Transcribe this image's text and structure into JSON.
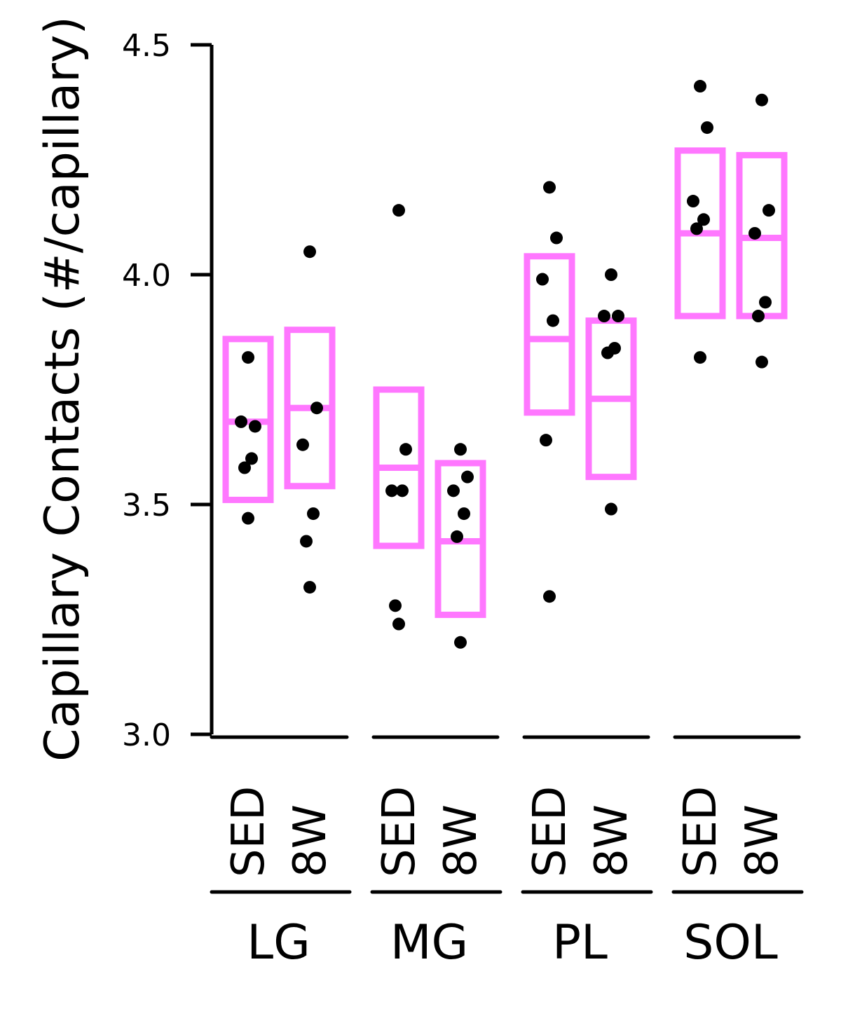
{
  "chart_data": {
    "type": "scatter",
    "ylabel": "Capillary Contacts (#/capillary)",
    "ylim": [
      3.0,
      4.5
    ],
    "yticks": [
      "3.0",
      "3.5",
      "4.0",
      "4.5"
    ],
    "ytick_values": [
      3.0,
      3.5,
      4.0,
      4.5
    ],
    "groups": [
      {
        "name": "LG",
        "conditions": [
          {
            "label": "SED",
            "points": [
              3.82,
              3.67,
              3.68,
              3.6,
              3.58,
              3.47
            ],
            "box": {
              "low": 3.51,
              "mid": 3.68,
              "high": 3.86
            }
          },
          {
            "label": "8W",
            "points": [
              4.05,
              3.71,
              3.63,
              3.48,
              3.42,
              3.32
            ],
            "box": {
              "low": 3.54,
              "mid": 3.71,
              "high": 3.88
            }
          }
        ]
      },
      {
        "name": "MG",
        "conditions": [
          {
            "label": "SED",
            "points": [
              4.14,
              3.62,
              3.53,
              3.53,
              3.28,
              3.24
            ],
            "box": {
              "low": 3.41,
              "mid": 3.58,
              "high": 3.75
            }
          },
          {
            "label": "8W",
            "points": [
              3.62,
              3.56,
              3.53,
              3.48,
              3.43,
              3.2
            ],
            "box": {
              "low": 3.26,
              "mid": 3.42,
              "high": 3.59
            }
          }
        ]
      },
      {
        "name": "PL",
        "conditions": [
          {
            "label": "SED",
            "points": [
              4.19,
              4.08,
              3.99,
              3.9,
              3.64,
              3.3
            ],
            "box": {
              "low": 3.7,
              "mid": 3.86,
              "high": 4.04
            }
          },
          {
            "label": "8W",
            "points": [
              4.0,
              3.91,
              3.91,
              3.84,
              3.83,
              3.49
            ],
            "box": {
              "low": 3.56,
              "mid": 3.73,
              "high": 3.9
            }
          }
        ]
      },
      {
        "name": "SOL",
        "conditions": [
          {
            "label": "SED",
            "points": [
              4.41,
              4.32,
              4.16,
              4.12,
              4.1,
              3.82
            ],
            "box": {
              "low": 3.91,
              "mid": 4.09,
              "high": 4.27
            }
          },
          {
            "label": "8W",
            "points": [
              4.38,
              4.14,
              4.09,
              3.94,
              3.91,
              3.81
            ],
            "box": {
              "low": 3.91,
              "mid": 4.08,
              "high": 4.26
            }
          }
        ]
      }
    ],
    "colors": {
      "box": "#ff77ff",
      "point": "#000000",
      "axis": "#000000"
    }
  }
}
